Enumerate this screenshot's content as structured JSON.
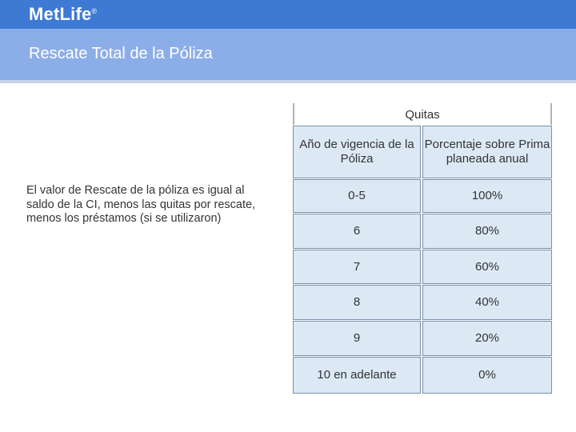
{
  "header": {
    "logo": "MetLife",
    "logo_mark": "®",
    "title": "Rescate Total de la Póliza"
  },
  "body_text": "El valor de Rescate de la póliza es igual al saldo de la CI, menos las quitas por rescate, menos los préstamos (si se utilizaron)",
  "table": {
    "group_header": "Quitas",
    "col1_header": "Año  de vigencia de la Póliza",
    "col2_header": "Porcentaje sobre Prima planeada anual",
    "rows": [
      {
        "year": "0-5",
        "pct": "100%"
      },
      {
        "year": "6",
        "pct": "80%"
      },
      {
        "year": "7",
        "pct": "60%"
      },
      {
        "year": "8",
        "pct": "40%"
      },
      {
        "year": "9",
        "pct": "20%"
      },
      {
        "year": "10 en adelante",
        "pct": "0%"
      }
    ]
  },
  "colors": {
    "topbar": "#3e7ad4",
    "titlebar": "#8caee8",
    "cell_bg": "#dce9f5"
  }
}
